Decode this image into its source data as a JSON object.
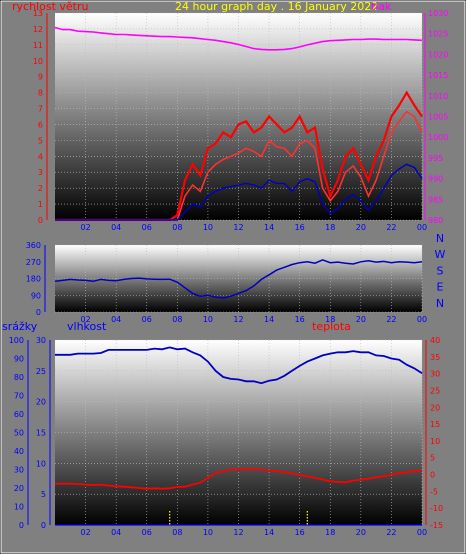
{
  "title": "24 hour graph day . 16 January 2022",
  "colors": {
    "wind": "#ff0000",
    "pressure": "#ff00ff",
    "title": "#ffff00",
    "blue_series": "#0000c0",
    "rain": "#ffff00",
    "temperature": "#ff0000",
    "blue_axis": "#0000ff",
    "frame": "#000000",
    "plot_top": "#ffffff",
    "plot_bottom": "#000000"
  },
  "x_axis": {
    "ticks": [
      "02",
      "04",
      "06",
      "08",
      "10",
      "12",
      "14",
      "16",
      "18",
      "20",
      "22",
      "00"
    ],
    "range_hours": [
      0,
      24
    ]
  },
  "chart_data": [
    {
      "type": "line",
      "panel": "wind-pressure",
      "left_axis_label": "rychlost větru",
      "right_axis_label": "tlak",
      "left_ticks": [
        "0",
        "1",
        "2",
        "3",
        "4",
        "5",
        "6",
        "7",
        "8",
        "9",
        "10",
        "11",
        "12",
        "13"
      ],
      "right_ticks": [
        "980",
        "985",
        "990",
        "995",
        "1000",
        "1005",
        "1010",
        "1015",
        "1020",
        "1025",
        "1030"
      ],
      "left_range": [
        0,
        13
      ],
      "right_range": [
        980,
        1030
      ],
      "x_hours": [
        0,
        0.5,
        1,
        1.5,
        2,
        2.5,
        3,
        3.5,
        4,
        4.5,
        5,
        5.5,
        6,
        6.5,
        7,
        7.5,
        8,
        8.5,
        9,
        9.5,
        10,
        10.5,
        11,
        11.5,
        12,
        12.5,
        13,
        13.5,
        14,
        14.5,
        15,
        15.5,
        16,
        16.5,
        17,
        17.5,
        18,
        18.5,
        19,
        19.5,
        20,
        20.5,
        21,
        21.5,
        22,
        22.5,
        23,
        23.5,
        24
      ],
      "series": [
        {
          "name": "tlak",
          "axis": "right",
          "values": [
            1026.5,
            1026,
            1026,
            1025.6,
            1025.5,
            1025.4,
            1025.2,
            1025,
            1024.8,
            1024.8,
            1024.7,
            1024.6,
            1024.5,
            1024.4,
            1024.3,
            1024.3,
            1024.2,
            1024.1,
            1024,
            1023.8,
            1023.6,
            1023.4,
            1023.1,
            1022.8,
            1022.4,
            1021.9,
            1021.4,
            1021.2,
            1021.1,
            1021.1,
            1021.2,
            1021.4,
            1021.8,
            1022.3,
            1022.7,
            1023.1,
            1023.3,
            1023.4,
            1023.5,
            1023.6,
            1023.6,
            1023.7,
            1023.7,
            1023.6,
            1023.6,
            1023.6,
            1023.6,
            1023.5,
            1023.4
          ]
        },
        {
          "name": "wind speed",
          "axis": "left",
          "values": [
            0,
            0,
            0,
            0,
            0,
            0,
            0,
            0,
            0,
            0,
            0,
            0,
            0,
            0,
            0,
            0,
            0,
            1.5,
            2.2,
            1.8,
            3,
            3.5,
            3.8,
            4,
            4.2,
            4.5,
            4.3,
            4,
            5,
            4.6,
            4.5,
            4,
            4.8,
            5,
            4.5,
            2,
            1.2,
            1.8,
            3,
            3.4,
            2.7,
            1.5,
            2.5,
            4,
            5.5,
            6.2,
            6.8,
            6.5,
            5.5
          ]
        },
        {
          "name": "wind gust",
          "axis": "left",
          "values": [
            0,
            0,
            0,
            0,
            0,
            0,
            0,
            0,
            0,
            0,
            0,
            0,
            0,
            0,
            0,
            0,
            0.3,
            2.5,
            3.5,
            2.8,
            4.5,
            4.8,
            5.5,
            5.2,
            6,
            6.2,
            5.5,
            5.8,
            6.5,
            6,
            5.5,
            5.8,
            6.5,
            5.5,
            5.8,
            3.2,
            1.5,
            2.5,
            4,
            4.5,
            3.5,
            2.5,
            4,
            5,
            6.5,
            7.2,
            8,
            7.2,
            6.5
          ]
        },
        {
          "name": "wind average",
          "axis": "left",
          "values": [
            0,
            0,
            0,
            0,
            0,
            0,
            0,
            0,
            0,
            0,
            0,
            0,
            0,
            0,
            0,
            0,
            0,
            0.5,
            1,
            0.8,
            1.5,
            1.8,
            2,
            2.1,
            2.2,
            2.3,
            2.2,
            2,
            2.5,
            2.3,
            2.3,
            1.8,
            2.4,
            2.6,
            2.4,
            1,
            0.4,
            0.7,
            1.3,
            1.6,
            1.2,
            0.6,
            1.2,
            2,
            2.8,
            3.2,
            3.5,
            3.3,
            2.6
          ]
        }
      ]
    },
    {
      "type": "line",
      "panel": "wind-direction",
      "y_ticks": [
        "0",
        "90",
        "180",
        "270",
        "360"
      ],
      "compass": [
        "N",
        "W",
        "S",
        "E",
        "N"
      ],
      "y_range": [
        0,
        360
      ],
      "x_hours": [
        0,
        0.5,
        1,
        1.5,
        2,
        2.5,
        3,
        3.5,
        4,
        4.5,
        5,
        5.5,
        6,
        6.5,
        7,
        7.5,
        8,
        8.5,
        9,
        9.5,
        10,
        10.5,
        11,
        11.5,
        12,
        12.5,
        13,
        13.5,
        14,
        14.5,
        15,
        15.5,
        16,
        16.5,
        17,
        17.5,
        18,
        18.5,
        19,
        19.5,
        20,
        20.5,
        21,
        21.5,
        22,
        22.5,
        23,
        23.5,
        24
      ],
      "series": [
        {
          "name": "wind direction",
          "values": [
            165,
            170,
            175,
            172,
            170,
            165,
            175,
            170,
            168,
            175,
            180,
            182,
            178,
            176,
            175,
            176,
            160,
            130,
            100,
            85,
            90,
            80,
            75,
            85,
            100,
            115,
            140,
            175,
            200,
            225,
            240,
            255,
            265,
            270,
            262,
            280,
            265,
            268,
            262,
            258,
            270,
            275,
            268,
            272,
            265,
            270,
            268,
            265,
            270
          ]
        }
      ]
    },
    {
      "type": "line",
      "panel": "humidity-temperature-rain",
      "left_axis_label": "srážky",
      "center_label": "vlhkost",
      "right_axis_label": "teplota",
      "rain_ticks": [
        "0",
        "10",
        "20",
        "30",
        "40",
        "50",
        "60",
        "70",
        "80",
        "90",
        "100"
      ],
      "humidity_ticks": [
        "0",
        "5",
        "10",
        "15",
        "20",
        "25",
        "30"
      ],
      "temperature_ticks": [
        "-15",
        "-10",
        "-5",
        "0",
        "5",
        "10",
        "15",
        "20",
        "25",
        "30",
        "35",
        "40"
      ],
      "rain_range": [
        0,
        100
      ],
      "humidity_range": [
        0,
        30
      ],
      "temperature_range": [
        -15,
        40
      ],
      "x_hours": [
        0,
        0.5,
        1,
        1.5,
        2,
        2.5,
        3,
        3.5,
        4,
        4.5,
        5,
        5.5,
        6,
        6.5,
        7,
        7.5,
        8,
        8.5,
        9,
        9.5,
        10,
        10.5,
        11,
        11.5,
        12,
        12.5,
        13,
        13.5,
        14,
        14.5,
        15,
        15.5,
        16,
        16.5,
        17,
        17.5,
        18,
        18.5,
        19,
        19.5,
        20,
        20.5,
        21,
        21.5,
        22,
        22.5,
        23,
        23.5,
        24
      ],
      "series": [
        {
          "name": "vlhkost",
          "axis": "humidity",
          "values": [
            27.6,
            27.6,
            27.6,
            27.8,
            27.8,
            27.8,
            27.9,
            28.4,
            28.4,
            28.4,
            28.4,
            28.4,
            28.4,
            28.6,
            28.5,
            28.8,
            28.5,
            28.6,
            28,
            27.5,
            26.5,
            25,
            24,
            23.7,
            23.6,
            23.3,
            23.3,
            23,
            23.4,
            23.6,
            24.2,
            25,
            25.8,
            26.5,
            27,
            27.5,
            27.8,
            28,
            28,
            28.2,
            28,
            28,
            27.5,
            27.4,
            27,
            26.8,
            26,
            25.4,
            24.6
          ]
        },
        {
          "name": "teplota",
          "axis": "temperature",
          "values": [
            -2.7,
            -2.7,
            -2.7,
            -2.8,
            -3,
            -3.1,
            -3,
            -3.3,
            -3.5,
            -3.6,
            -3.8,
            -4,
            -4.2,
            -4.1,
            -4.2,
            -4.1,
            -3.7,
            -3.6,
            -3,
            -2.4,
            -1,
            0.5,
            1,
            1.5,
            1.5,
            1.6,
            1.6,
            1.5,
            1.2,
            1,
            0.8,
            0.4,
            -0.2,
            -0.5,
            -1,
            -1.5,
            -2,
            -2.2,
            -2.3,
            -1.8,
            -1.5,
            -1.2,
            -0.8,
            -0.5,
            0,
            0.4,
            0.7,
            1,
            1.2
          ]
        },
        {
          "name": "srážky",
          "axis": "rain",
          "values": [
            0,
            0,
            0,
            0,
            0,
            0,
            0,
            0,
            0,
            0,
            0,
            0,
            0,
            0,
            0,
            0,
            0,
            0,
            0,
            0,
            0,
            0,
            0,
            0,
            0,
            0,
            0,
            0,
            0,
            0,
            0,
            0,
            0,
            0,
            0,
            0,
            0,
            0,
            0,
            0,
            0,
            0,
            0,
            0,
            0,
            0,
            0,
            0,
            0
          ]
        }
      ],
      "dotted_markers_hours": [
        7.5,
        16.5
      ]
    }
  ]
}
